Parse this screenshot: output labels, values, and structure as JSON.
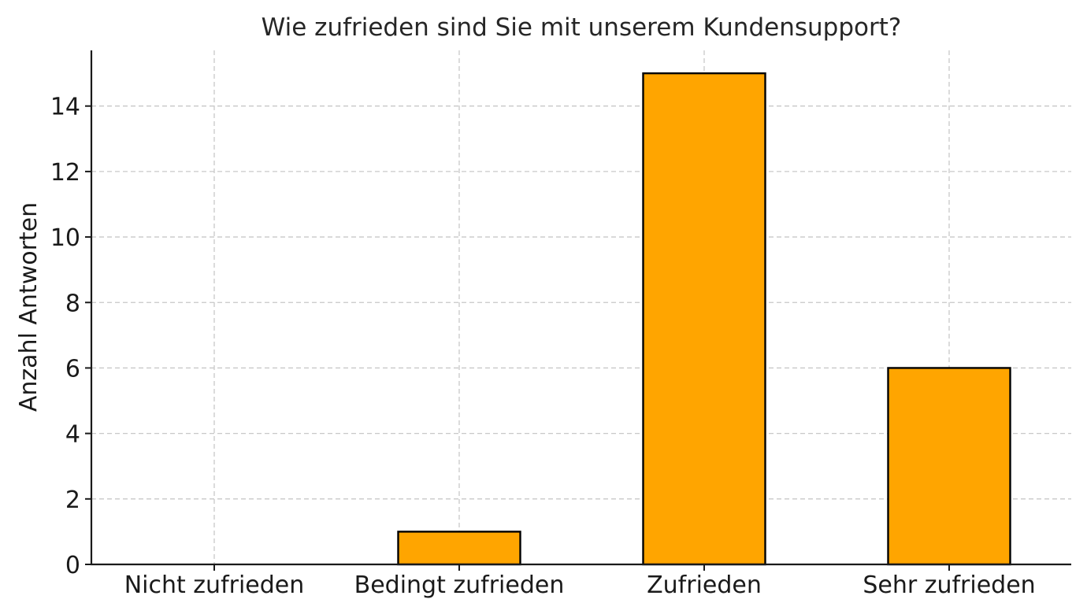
{
  "chart_data": {
    "type": "bar",
    "title": "Wie zufrieden sind Sie mit unserem Kundensupport?",
    "xlabel": "",
    "ylabel": "Anzahl Antworten",
    "categories": [
      "Nicht zufrieden",
      "Bedingt zufrieden",
      "Zufrieden",
      "Sehr zufrieden"
    ],
    "values": [
      0,
      1,
      15,
      6
    ],
    "yticks": [
      0,
      2,
      4,
      6,
      8,
      10,
      12,
      14
    ],
    "ylim": [
      0,
      15.7
    ],
    "grid": true,
    "bar_color": "#FFA500",
    "bar_edge_color": "#000000"
  }
}
